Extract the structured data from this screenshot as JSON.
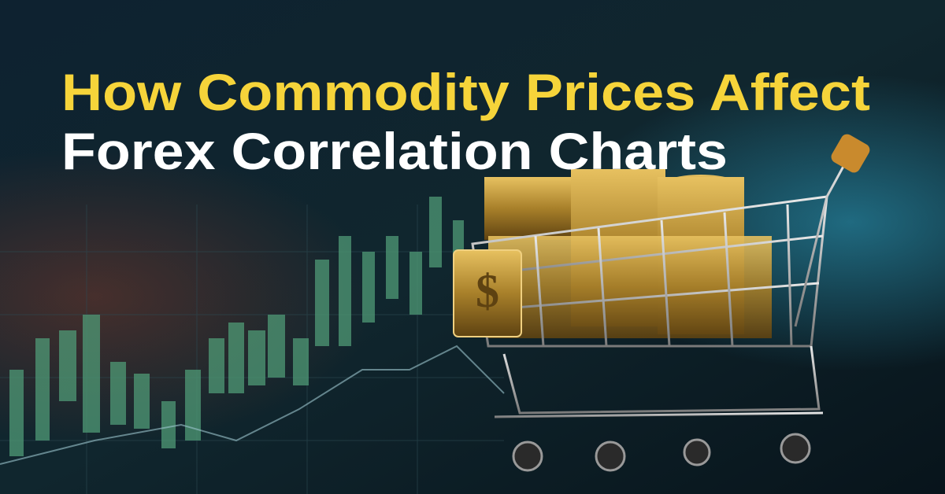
{
  "title": {
    "line1": "How Commodity Prices Affect",
    "line2": "Forex Correlation Charts"
  }
}
